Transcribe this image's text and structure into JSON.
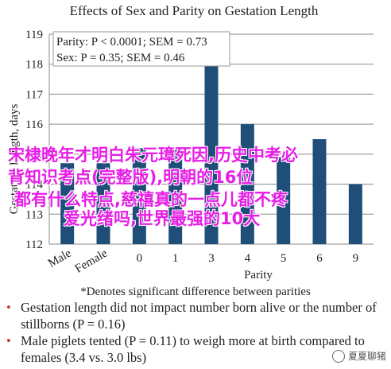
{
  "chart_data": {
    "type": "bar",
    "title": "Effects of Sex and Parity on Gestation Length",
    "ylabel": "Gestation Length, days",
    "xlabel": "Parity",
    "ylim": [
      112,
      119
    ],
    "yticks": [
      112,
      113,
      114,
      115,
      116,
      117,
      118,
      119
    ],
    "grid": true,
    "categories": [
      "Male",
      "Female",
      "0",
      "1",
      "3",
      "4",
      "5",
      "6",
      "9"
    ],
    "values": [
      114.7,
      114.7,
      115.2,
      115.2,
      118,
      116,
      114.9,
      115.5,
      114
    ],
    "annotations": [
      {
        "category": "3",
        "text": "*"
      }
    ],
    "stats_box": [
      "Parity: P < 0.0001; SEM = 0.73",
      "Sex: P = 0.35; SEM = 0.46"
    ],
    "footnote": "*Denotes significant difference between parities",
    "bar_color": "#1f4e79"
  },
  "overlay_text": [
    "宋棣晚年才明白朱元璋死因,历史中考必",
    "背知识考点(完整版),明朝的16位",
    "都有什么特点,慈禧真的一点儿都不疼",
    "爱光绪吗,世界最强的10大"
  ],
  "bullets": [
    {
      "dot": "•",
      "text": "Gestation length did not impact number born alive or the number of stillborns (P = 0.16)"
    },
    {
      "dot": "•",
      "text": "Male piglets tented (P = 0.11) to weigh more at birth compared to females (3.4 vs. 3.0 lbs)"
    }
  ],
  "watermark": {
    "text": "夏夏聊猪",
    "icon": "wechat-channel-icon"
  }
}
